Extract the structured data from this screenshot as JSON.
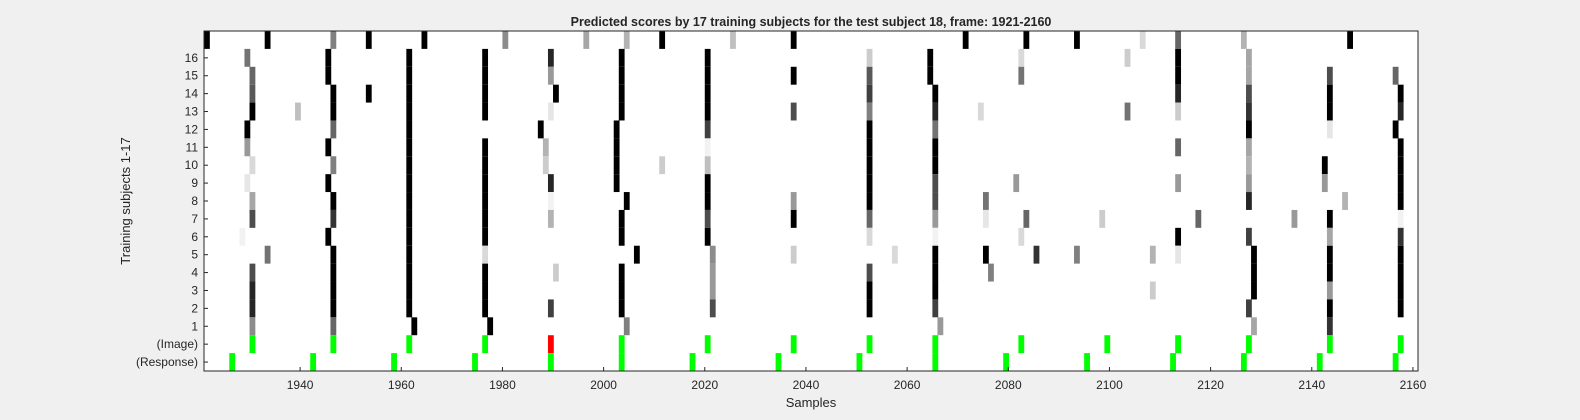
{
  "chart_data": {
    "type": "heatmap",
    "title": "Predicted scores by 17 training subjects for the test subject 18, frame: 1921-2160",
    "xlabel": "Samples",
    "ylabel": "Training subjects 1-17",
    "xlim": [
      1921,
      2161
    ],
    "xticks": [
      1940,
      1960,
      1980,
      2000,
      2020,
      2040,
      2060,
      2080,
      2100,
      2120,
      2140,
      2160
    ],
    "rows": [
      "17",
      "16",
      "15",
      "14",
      "13",
      "12",
      "11",
      "10",
      "9",
      "8",
      "7",
      "6",
      "5",
      "4",
      "3",
      "2",
      "1",
      "(Image)",
      "(Response)"
    ],
    "row_labels": [
      "16",
      "15",
      "14",
      "13",
      "12",
      "11",
      "10",
      "9",
      "8",
      "7",
      "6",
      "5",
      "4",
      "3",
      "2",
      "1",
      "(Image)",
      "(Response)"
    ],
    "colors": {
      "background": "#f0f0f0",
      "plot_area": "#ffffff",
      "correct": "#00ff00",
      "incorrect": "#ff0000",
      "text": "#262626"
    },
    "note_scale": "grayscale: 0 = white, 1 = black",
    "cells": [
      [
        "17",
        1921,
        1.0
      ],
      [
        "17",
        1933,
        1.0
      ],
      [
        "17",
        1946,
        0.5
      ],
      [
        "17",
        1953,
        1.0
      ],
      [
        "17",
        1964,
        1.0
      ],
      [
        "17",
        1980,
        0.45
      ],
      [
        "17",
        1996,
        0.35
      ],
      [
        "17",
        2004,
        0.3
      ],
      [
        "17",
        2011,
        1.0
      ],
      [
        "17",
        2025,
        0.25
      ],
      [
        "17",
        2037,
        1.0
      ],
      [
        "17",
        2071,
        1.0
      ],
      [
        "17",
        2083,
        1.0
      ],
      [
        "17",
        2093,
        1.0
      ],
      [
        "17",
        2106,
        0.15
      ],
      [
        "17",
        2113,
        0.6
      ],
      [
        "17",
        2126,
        0.3
      ],
      [
        "17",
        2147,
        1.0
      ],
      [
        "16",
        1929,
        0.55
      ],
      [
        "16",
        1945,
        1.0
      ],
      [
        "16",
        1961,
        1.0
      ],
      [
        "16",
        1976,
        1.0
      ],
      [
        "16",
        1989,
        0.85
      ],
      [
        "16",
        2003,
        1.0
      ],
      [
        "16",
        2020,
        1.0
      ],
      [
        "16",
        2052,
        0.2
      ],
      [
        "16",
        2064,
        1.0
      ],
      [
        "16",
        2082,
        0.15
      ],
      [
        "16",
        2103,
        0.2
      ],
      [
        "16",
        2113,
        1.0
      ],
      [
        "16",
        2127,
        0.35
      ],
      [
        "15",
        1930,
        0.6
      ],
      [
        "15",
        1945,
        1.0
      ],
      [
        "15",
        1961,
        1.0
      ],
      [
        "15",
        1976,
        1.0
      ],
      [
        "15",
        1989,
        0.4
      ],
      [
        "15",
        2003,
        1.0
      ],
      [
        "15",
        2020,
        1.0
      ],
      [
        "15",
        2037,
        1.0
      ],
      [
        "15",
        2052,
        0.65
      ],
      [
        "15",
        2064,
        1.0
      ],
      [
        "15",
        2082,
        0.55
      ],
      [
        "15",
        2113,
        1.0
      ],
      [
        "15",
        2127,
        0.35
      ],
      [
        "15",
        2143,
        0.7
      ],
      [
        "15",
        2156,
        0.6
      ],
      [
        "14",
        1930,
        0.65
      ],
      [
        "14",
        1946,
        1.0
      ],
      [
        "14",
        1953,
        1.0
      ],
      [
        "14",
        1961,
        1.0
      ],
      [
        "14",
        1976,
        1.0
      ],
      [
        "14",
        1990,
        1.0
      ],
      [
        "14",
        2003,
        1.0
      ],
      [
        "14",
        2020,
        1.0
      ],
      [
        "14",
        2052,
        0.75
      ],
      [
        "14",
        2065,
        1.0
      ],
      [
        "14",
        2113,
        0.85
      ],
      [
        "14",
        2127,
        0.7
      ],
      [
        "14",
        2143,
        1.0
      ],
      [
        "14",
        2157,
        1.0
      ],
      [
        "13",
        1930,
        1.0
      ],
      [
        "13",
        1939,
        0.25
      ],
      [
        "13",
        1946,
        1.0
      ],
      [
        "13",
        1961,
        1.0
      ],
      [
        "13",
        1976,
        1.0
      ],
      [
        "13",
        1989,
        0.1
      ],
      [
        "13",
        2003,
        1.0
      ],
      [
        "13",
        2020,
        1.0
      ],
      [
        "13",
        2037,
        0.7
      ],
      [
        "13",
        2052,
        0.5
      ],
      [
        "13",
        2065,
        0.85
      ],
      [
        "13",
        2074,
        0.15
      ],
      [
        "13",
        2103,
        0.55
      ],
      [
        "13",
        2113,
        0.2
      ],
      [
        "13",
        2127,
        0.8
      ],
      [
        "13",
        2143,
        1.0
      ],
      [
        "13",
        2157,
        0.85
      ],
      [
        "12",
        1929,
        1.0
      ],
      [
        "12",
        1946,
        0.6
      ],
      [
        "12",
        1961,
        1.0
      ],
      [
        "12",
        1987,
        1.0
      ],
      [
        "12",
        2002,
        1.0
      ],
      [
        "12",
        2020,
        0.75
      ],
      [
        "12",
        2052,
        1.0
      ],
      [
        "12",
        2065,
        0.55
      ],
      [
        "12",
        2127,
        1.0
      ],
      [
        "12",
        2143,
        0.1
      ],
      [
        "12",
        2156,
        1.0
      ],
      [
        "11",
        1929,
        0.4
      ],
      [
        "11",
        1945,
        1.0
      ],
      [
        "11",
        1961,
        1.0
      ],
      [
        "11",
        1976,
        1.0
      ],
      [
        "11",
        1988,
        0.3
      ],
      [
        "11",
        2002,
        1.0
      ],
      [
        "11",
        2020,
        0.05
      ],
      [
        "11",
        2052,
        1.0
      ],
      [
        "11",
        2065,
        1.0
      ],
      [
        "11",
        2113,
        0.6
      ],
      [
        "11",
        2127,
        0.35
      ],
      [
        "11",
        2157,
        1.0
      ],
      [
        "10",
        1930,
        0.15
      ],
      [
        "10",
        1946,
        0.5
      ],
      [
        "10",
        1961,
        1.0
      ],
      [
        "10",
        1976,
        1.0
      ],
      [
        "10",
        1988,
        0.2
      ],
      [
        "10",
        2002,
        1.0
      ],
      [
        "10",
        2011,
        0.2
      ],
      [
        "10",
        2020,
        0.25
      ],
      [
        "10",
        2052,
        1.0
      ],
      [
        "10",
        2065,
        1.0
      ],
      [
        "10",
        2127,
        0.3
      ],
      [
        "10",
        2142,
        1.0
      ],
      [
        "10",
        2157,
        1.0
      ],
      [
        "9",
        1929,
        0.1
      ],
      [
        "9",
        1945,
        1.0
      ],
      [
        "9",
        1961,
        1.0
      ],
      [
        "9",
        1976,
        1.0
      ],
      [
        "9",
        1989,
        0.85
      ],
      [
        "9",
        2002,
        1.0
      ],
      [
        "9",
        2020,
        1.0
      ],
      [
        "9",
        2052,
        1.0
      ],
      [
        "9",
        2065,
        0.7
      ],
      [
        "9",
        2081,
        0.4
      ],
      [
        "9",
        2113,
        0.4
      ],
      [
        "9",
        2127,
        0.4
      ],
      [
        "9",
        2142,
        0.4
      ],
      [
        "9",
        2157,
        1.0
      ],
      [
        "8",
        1930,
        0.35
      ],
      [
        "8",
        1946,
        1.0
      ],
      [
        "8",
        1961,
        1.0
      ],
      [
        "8",
        1976,
        1.0
      ],
      [
        "8",
        1989,
        0.05
      ],
      [
        "8",
        2004,
        1.0
      ],
      [
        "8",
        2020,
        1.0
      ],
      [
        "8",
        2037,
        0.4
      ],
      [
        "8",
        2052,
        1.0
      ],
      [
        "8",
        2065,
        0.7
      ],
      [
        "8",
        2075,
        0.55
      ],
      [
        "8",
        2127,
        0.85
      ],
      [
        "8",
        2146,
        0.3
      ],
      [
        "8",
        2157,
        1.0
      ],
      [
        "7",
        1930,
        0.7
      ],
      [
        "7",
        1946,
        0.8
      ],
      [
        "7",
        1961,
        1.0
      ],
      [
        "7",
        1976,
        1.0
      ],
      [
        "7",
        1989,
        0.3
      ],
      [
        "7",
        2003,
        1.0
      ],
      [
        "7",
        2020,
        0.7
      ],
      [
        "7",
        2037,
        1.0
      ],
      [
        "7",
        2052,
        0.6
      ],
      [
        "7",
        2065,
        0.4
      ],
      [
        "7",
        2075,
        0.1
      ],
      [
        "7",
        2083,
        0.6
      ],
      [
        "7",
        2098,
        0.2
      ],
      [
        "7",
        2117,
        0.6
      ],
      [
        "7",
        2136,
        0.4
      ],
      [
        "7",
        2143,
        1.0
      ],
      [
        "7",
        2157,
        0.05
      ],
      [
        "6",
        1928,
        0.05
      ],
      [
        "6",
        1945,
        1.0
      ],
      [
        "6",
        1961,
        1.0
      ],
      [
        "6",
        1976,
        1.0
      ],
      [
        "6",
        2003,
        1.0
      ],
      [
        "6",
        2020,
        1.0
      ],
      [
        "6",
        2052,
        0.15
      ],
      [
        "6",
        2065,
        0.05
      ],
      [
        "6",
        2082,
        0.15
      ],
      [
        "6",
        2113,
        1.0
      ],
      [
        "6",
        2127,
        0.75
      ],
      [
        "6",
        2143,
        0.35
      ],
      [
        "6",
        2157,
        0.8
      ],
      [
        "5",
        1933,
        0.55
      ],
      [
        "5",
        1946,
        1.0
      ],
      [
        "5",
        1961,
        1.0
      ],
      [
        "5",
        1976,
        0.15
      ],
      [
        "5",
        2006,
        1.0
      ],
      [
        "5",
        2021,
        0.45
      ],
      [
        "5",
        2037,
        0.2
      ],
      [
        "5",
        2057,
        0.15
      ],
      [
        "5",
        2065,
        1.0
      ],
      [
        "5",
        2075,
        1.0
      ],
      [
        "5",
        2085,
        0.8
      ],
      [
        "5",
        2093,
        0.5
      ],
      [
        "5",
        2108,
        0.3
      ],
      [
        "5",
        2113,
        0.1
      ],
      [
        "5",
        2128,
        1.0
      ],
      [
        "5",
        2143,
        1.0
      ],
      [
        "5",
        2157,
        1.0
      ],
      [
        "4",
        1930,
        0.7
      ],
      [
        "4",
        1946,
        1.0
      ],
      [
        "4",
        1961,
        1.0
      ],
      [
        "4",
        1976,
        1.0
      ],
      [
        "4",
        1990,
        0.2
      ],
      [
        "4",
        2003,
        1.0
      ],
      [
        "4",
        2021,
        0.4
      ],
      [
        "4",
        2052,
        0.7
      ],
      [
        "4",
        2065,
        1.0
      ],
      [
        "4",
        2076,
        0.5
      ],
      [
        "4",
        2128,
        1.0
      ],
      [
        "4",
        2143,
        1.0
      ],
      [
        "4",
        2157,
        1.0
      ],
      [
        "3",
        1930,
        0.85
      ],
      [
        "3",
        1946,
        1.0
      ],
      [
        "3",
        1961,
        1.0
      ],
      [
        "3",
        1976,
        1.0
      ],
      [
        "3",
        2003,
        1.0
      ],
      [
        "3",
        2021,
        0.4
      ],
      [
        "3",
        2052,
        1.0
      ],
      [
        "3",
        2065,
        1.0
      ],
      [
        "3",
        2108,
        0.2
      ],
      [
        "3",
        2128,
        1.0
      ],
      [
        "3",
        2143,
        0.4
      ],
      [
        "3",
        2157,
        1.0
      ],
      [
        "2",
        1930,
        0.85
      ],
      [
        "2",
        1946,
        1.0
      ],
      [
        "2",
        1961,
        1.0
      ],
      [
        "2",
        1976,
        1.0
      ],
      [
        "2",
        1989,
        0.75
      ],
      [
        "2",
        2003,
        1.0
      ],
      [
        "2",
        2021,
        0.7
      ],
      [
        "2",
        2052,
        1.0
      ],
      [
        "2",
        2065,
        0.75
      ],
      [
        "2",
        2127,
        0.75
      ],
      [
        "2",
        2143,
        1.0
      ],
      [
        "2",
        2157,
        1.0
      ],
      [
        "1",
        1930,
        0.45
      ],
      [
        "1",
        1946,
        0.6
      ],
      [
        "1",
        1962,
        1.0
      ],
      [
        "1",
        1977,
        1.0
      ],
      [
        "1",
        2004,
        0.5
      ],
      [
        "1",
        2066,
        0.4
      ],
      [
        "1",
        2128,
        0.35
      ],
      [
        "1",
        2143,
        0.8
      ]
    ],
    "image_markers": [
      [
        1930,
        "correct"
      ],
      [
        1946,
        "correct"
      ],
      [
        1961,
        "correct"
      ],
      [
        1976,
        "correct"
      ],
      [
        1989,
        "incorrect"
      ],
      [
        2003,
        "correct"
      ],
      [
        2020,
        "correct"
      ],
      [
        2037,
        "correct"
      ],
      [
        2052,
        "correct"
      ],
      [
        2065,
        "correct"
      ],
      [
        2082,
        "correct"
      ],
      [
        2099,
        "correct"
      ],
      [
        2113,
        "correct"
      ],
      [
        2127,
        "correct"
      ],
      [
        2143,
        "correct"
      ],
      [
        2157,
        "correct"
      ]
    ],
    "response_markers": [
      1926,
      1942,
      1958,
      1974,
      1989,
      2003,
      2017,
      2034,
      2050,
      2065,
      2079,
      2095,
      2112,
      2126,
      2141,
      2156
    ]
  }
}
